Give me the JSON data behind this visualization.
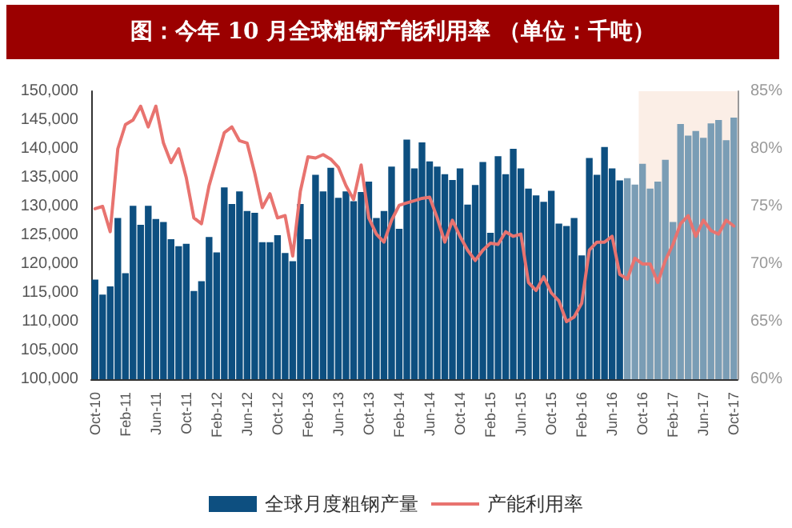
{
  "chart_data": {
    "type": "bar",
    "title": "图：今年 10 月全球粗钢产能利用率 （单位：千吨）",
    "categories": [
      "Oct-10",
      null,
      null,
      null,
      "Feb-11",
      null,
      null,
      null,
      "Jun-11",
      null,
      null,
      null,
      "Oct-11",
      null,
      null,
      null,
      "Feb-12",
      null,
      null,
      null,
      "Jun-12",
      null,
      null,
      null,
      "Oct-12",
      null,
      null,
      null,
      "Feb-13",
      null,
      null,
      null,
      "Jun-13",
      null,
      null,
      null,
      "Oct-13",
      null,
      null,
      null,
      "Feb-14",
      null,
      null,
      null,
      "Jun-14",
      null,
      null,
      null,
      "Oct-14",
      null,
      null,
      null,
      "Feb-15",
      null,
      null,
      null,
      "Jun-15",
      null,
      null,
      null,
      "Oct-15",
      null,
      null,
      null,
      "Feb-16",
      null,
      null,
      null,
      "Jun-16",
      null,
      null,
      null,
      "Oct-16",
      null,
      null,
      null,
      "Feb-17",
      null,
      null,
      null,
      "Jun-17",
      null,
      null,
      null,
      "Oct-17"
    ],
    "series": [
      {
        "name": "全球月度粗钢产量",
        "color": "#0d4f80",
        "colors": [
          "#0d4f80",
          "#0d4f80",
          "#0d4f80",
          "#0d4f80",
          "#0d4f80",
          "#0d4f80",
          "#0d4f80",
          "#0d4f80",
          "#0d4f80",
          "#0d4f80",
          "#0d4f80",
          "#0d4f80",
          "#0d4f80",
          "#0d4f80",
          "#0d4f80",
          "#0d4f80",
          "#0d4f80",
          "#0d4f80",
          "#0d4f80",
          "#0d4f80",
          "#0d4f80",
          "#0d4f80",
          "#0d4f80",
          "#0d4f80",
          "#0d4f80",
          "#0d4f80",
          "#0d4f80",
          "#0d4f80",
          "#0d4f80",
          "#0d4f80",
          "#0d4f80",
          "#0d4f80",
          "#0d4f80",
          "#0d4f80",
          "#0d4f80",
          "#0d4f80",
          "#0d4f80",
          "#0d4f80",
          "#0d4f80",
          "#0d4f80",
          "#0d4f80",
          "#0d4f80",
          "#0d4f80",
          "#0d4f80",
          "#0d4f80",
          "#0d4f80",
          "#0d4f80",
          "#0d4f80",
          "#0d4f80",
          "#0d4f80",
          "#0d4f80",
          "#0d4f80",
          "#0d4f80",
          "#0d4f80",
          "#0d4f80",
          "#0d4f80",
          "#0d4f80",
          "#0d4f80",
          "#0d4f80",
          "#0d4f80",
          "#0d4f80",
          "#0d4f80",
          "#0d4f80",
          "#0d4f80",
          "#0d4f80",
          "#0d4f80",
          "#0d4f80",
          "#0d4f80",
          "#0d4f80",
          "#0d4f80",
          "#7a9db5",
          "#7a9db5",
          "#7a9db5",
          "#7a9db5",
          "#7a9db5",
          "#7a9db5",
          "#7a9db5",
          "#7a9db5",
          "#7a9db5",
          "#7a9db5",
          "#7a9db5",
          "#7a9db5",
          "#7a9db5",
          "#7a9db5",
          "#7a9db5"
        ],
        "values": [
          117300,
          114700,
          116100,
          128000,
          118400,
          130100,
          126800,
          130100,
          127800,
          127300,
          124300,
          123100,
          123500,
          115300,
          117000,
          124700,
          122000,
          133300,
          130400,
          132600,
          129200,
          128900,
          123800,
          123800,
          125000,
          121900,
          120500,
          130400,
          124300,
          135500,
          132600,
          136700,
          131500,
          132600,
          130900,
          132500,
          134300,
          128000,
          129200,
          136900,
          126100,
          141600,
          136600,
          141100,
          137800,
          136900,
          135600,
          134600,
          136600,
          130300,
          133700,
          137700,
          125400,
          138700,
          135600,
          140000,
          136600,
          133100,
          131900,
          130800,
          132700,
          127000,
          126600,
          128000,
          121500,
          138400,
          135500,
          140300,
          136600,
          134500,
          134900,
          133800,
          137400,
          133100,
          134300,
          138100,
          127300,
          144300,
          142300,
          143100,
          141900,
          144400,
          145000,
          141500,
          145400
        ]
      },
      {
        "name": "产能利用率",
        "type": "line",
        "axis": "y2",
        "color": "#e8736f",
        "values": [
          74.8,
          75.0,
          72.8,
          80.0,
          82.1,
          82.5,
          83.7,
          81.9,
          83.7,
          80.5,
          78.8,
          80.0,
          77.5,
          74.0,
          73.5,
          76.8,
          79.1,
          81.4,
          81.9,
          80.7,
          80.5,
          77.9,
          74.9,
          76.1,
          74.0,
          74.2,
          70.7,
          76.3,
          79.3,
          79.2,
          79.5,
          79.1,
          78.4,
          76.8,
          75.6,
          78.6,
          74.0,
          72.6,
          71.9,
          73.8,
          75.1,
          75.3,
          75.5,
          75.7,
          75.8,
          74.0,
          71.9,
          73.8,
          72.4,
          71.2,
          70.3,
          71.2,
          71.8,
          71.7,
          72.8,
          72.4,
          72.6,
          68.4,
          67.7,
          68.9,
          67.5,
          66.8,
          65.0,
          65.4,
          66.6,
          71.2,
          71.9,
          71.9,
          72.4,
          69.1,
          68.7,
          70.5,
          70.0,
          70.0,
          68.4,
          70.3,
          71.7,
          73.5,
          74.2,
          72.4,
          73.8,
          72.9,
          72.6,
          73.8,
          73.3
        ]
      }
    ],
    "ylim": [
      100000,
      150000
    ],
    "yticks": [
      {
        "value": 100000,
        "label": "100,000"
      },
      {
        "value": 105000,
        "label": "105,000"
      },
      {
        "value": 110000,
        "label": "110,000"
      },
      {
        "value": 115000,
        "label": "115,000"
      },
      {
        "value": 120000,
        "label": "120,000"
      },
      {
        "value": 125000,
        "label": "125,000"
      },
      {
        "value": 130000,
        "label": "130,000"
      },
      {
        "value": 135000,
        "label": "135,000"
      },
      {
        "value": 140000,
        "label": "140,000"
      },
      {
        "value": 145000,
        "label": "145,000"
      },
      {
        "value": 150000,
        "label": "150,000"
      }
    ],
    "y2lim": [
      60,
      85
    ],
    "y2ticks": [
      {
        "value": 60,
        "label": "60%"
      },
      {
        "value": 65,
        "label": "65%"
      },
      {
        "value": 70,
        "label": "70%"
      },
      {
        "value": 75,
        "label": "75%"
      },
      {
        "value": 80,
        "label": "80%"
      },
      {
        "value": 85,
        "label": "85%"
      }
    ],
    "bands": [
      {
        "axis": "x",
        "from": "Oct-16",
        "to": "Oct-17",
        "color": "#fbeee6"
      }
    ],
    "legend": "bottom",
    "grid": false,
    "marker": "none",
    "line_style": "solid"
  }
}
